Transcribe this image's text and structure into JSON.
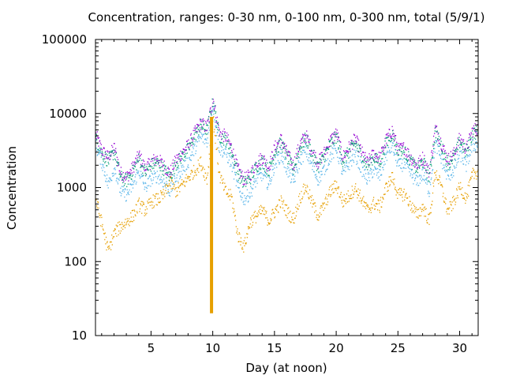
{
  "chart_data": {
    "type": "scatter",
    "title": "Concentration, ranges: 0-30 nm, 0-100 nm, 0-300 nm, total (5/9/1)",
    "xlabel": "Day (at noon)",
    "ylabel": "Concentration",
    "xlim": [
      0.5,
      31.5
    ],
    "ylim": [
      10,
      100000
    ],
    "yscale": "log",
    "grid": false,
    "legend": "none",
    "x_ticks": [
      5,
      10,
      15,
      20,
      25,
      30
    ],
    "x_tick_labels": [
      "5",
      "10",
      "15",
      "20",
      "25",
      "30"
    ],
    "y_ticks": [
      10,
      100,
      1000,
      10000,
      100000
    ],
    "y_tick_labels": [
      "10",
      "100",
      "1000",
      "10000",
      "100000"
    ],
    "x": [
      0.5,
      1,
      1.5,
      2,
      2.5,
      3,
      3.5,
      4,
      4.5,
      5,
      5.5,
      6,
      6.5,
      7,
      7.5,
      8,
      8.5,
      9,
      9.5,
      10,
      10.5,
      11,
      11.5,
      12,
      12.5,
      13,
      13.5,
      14,
      14.5,
      15,
      15.5,
      16,
      16.5,
      17,
      17.5,
      18,
      18.5,
      19,
      19.5,
      20,
      20.5,
      21,
      21.5,
      22,
      22.5,
      23,
      23.5,
      24,
      24.5,
      25,
      25.5,
      26,
      26.5,
      27,
      27.5,
      28,
      28.5,
      29,
      29.5,
      30,
      30.5,
      31,
      31.5
    ],
    "series": [
      {
        "color": "#9400d3",
        "values": [
          5200,
          3200,
          2600,
          3500,
          1600,
          1400,
          1900,
          2800,
          1800,
          2300,
          2500,
          2000,
          1600,
          2400,
          3000,
          3800,
          5500,
          7500,
          6500,
          16000,
          5500,
          5000,
          3500,
          1800,
          1300,
          1500,
          2200,
          2600,
          1900,
          3500,
          4600,
          2900,
          2000,
          3800,
          5200,
          3300,
          2200,
          3000,
          4400,
          5500,
          2600,
          3500,
          4600,
          3100,
          2200,
          2900,
          2500,
          4400,
          6000,
          3300,
          3500,
          2600,
          2000,
          2600,
          1600,
          6500,
          4000,
          2400,
          2900,
          4800,
          3300,
          6000,
          6500
        ]
      },
      {
        "color": "#009e73",
        "values": [
          4600,
          2900,
          2300,
          3100,
          1400,
          1250,
          1700,
          2500,
          1600,
          2050,
          2200,
          1800,
          1400,
          2150,
          2700,
          3400,
          5000,
          7000,
          6000,
          15000,
          5000,
          4500,
          3100,
          1600,
          1150,
          1350,
          1950,
          2300,
          1700,
          3100,
          4100,
          2600,
          1800,
          3400,
          4700,
          2950,
          1950,
          2700,
          3950,
          5000,
          2300,
          3100,
          4100,
          2750,
          1950,
          2600,
          2200,
          3950,
          5400,
          2950,
          3100,
          2300,
          1800,
          2300,
          1400,
          5800,
          3600,
          2150,
          2600,
          4300,
          2950,
          5400,
          5800
        ]
      },
      {
        "color": "#56b4e9",
        "values": [
          3600,
          2200,
          1100,
          1900,
          900,
          800,
          1100,
          1700,
          1000,
          1350,
          1450,
          1200,
          900,
          1400,
          1800,
          2300,
          3400,
          5000,
          4200,
          13000,
          3400,
          3000,
          2100,
          1000,
          700,
          850,
          1300,
          1550,
          1100,
          2100,
          2800,
          1750,
          1200,
          2300,
          3200,
          2000,
          1300,
          1800,
          2700,
          3400,
          1550,
          2100,
          2800,
          1850,
          1300,
          1750,
          1450,
          2700,
          3700,
          2000,
          2100,
          1550,
          1200,
          1550,
          900,
          4000,
          2400,
          1400,
          1750,
          2900,
          2000,
          3700,
          4000
        ]
      },
      {
        "color": "#e69f00",
        "values": [
          700,
          320,
          140,
          250,
          300,
          350,
          420,
          600,
          500,
          650,
          700,
          800,
          1200,
          900,
          1100,
          1400,
          1700,
          2200,
          1300,
          9000,
          1500,
          900,
          750,
          230,
          160,
          350,
          420,
          500,
          360,
          480,
          650,
          480,
          370,
          720,
          1050,
          650,
          420,
          580,
          900,
          1100,
          650,
          780,
          1000,
          720,
          500,
          620,
          560,
          1000,
          1400,
          800,
          830,
          600,
          430,
          560,
          350,
          1700,
          1000,
          480,
          650,
          1050,
          720,
          1500,
          1700
        ]
      }
    ],
    "spike": {
      "x": 9.9,
      "y_low": 20,
      "y_high": 9000,
      "color": "#e69f00"
    }
  }
}
